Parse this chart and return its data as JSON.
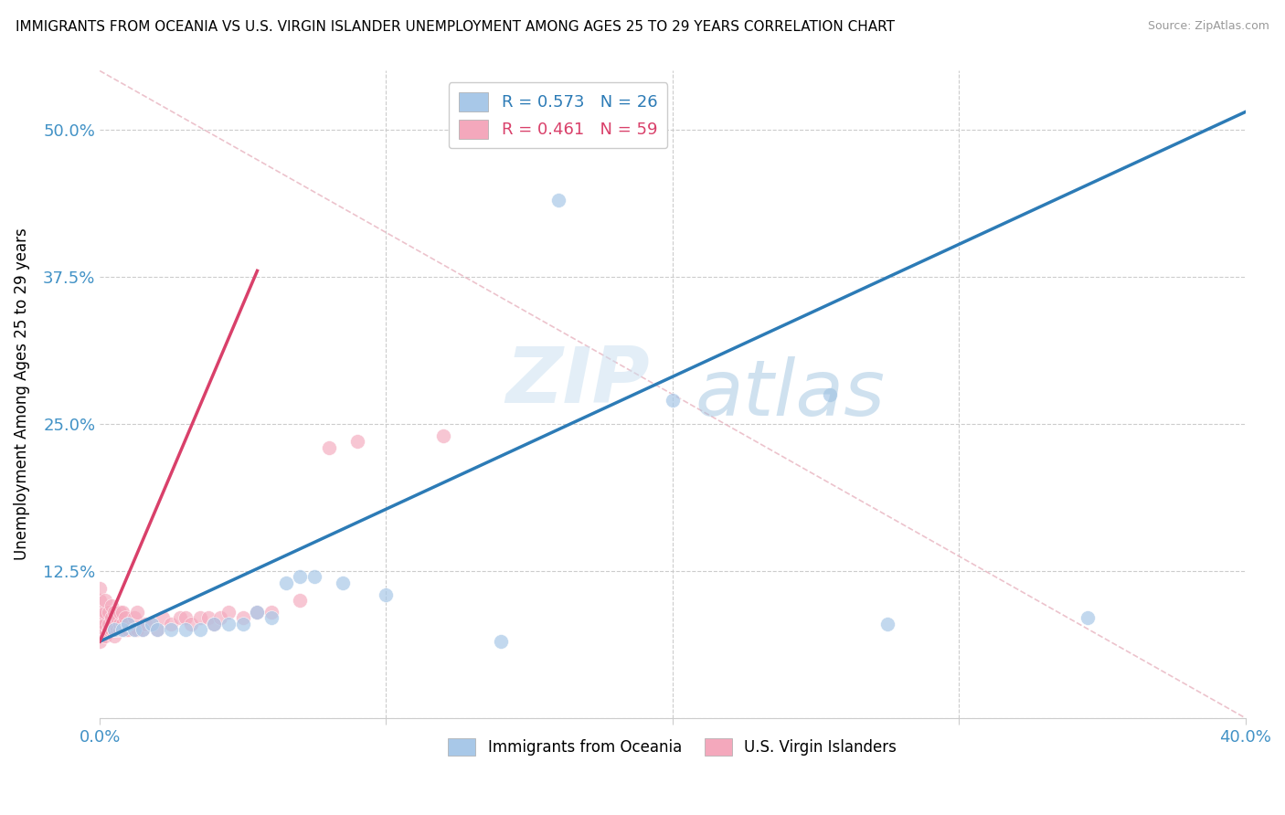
{
  "title": "IMMIGRANTS FROM OCEANIA VS U.S. VIRGIN ISLANDER UNEMPLOYMENT AMONG AGES 25 TO 29 YEARS CORRELATION CHART",
  "source": "Source: ZipAtlas.com",
  "ylabel": "Unemployment Among Ages 25 to 29 years",
  "xlim": [
    0,
    0.4
  ],
  "ylim": [
    0,
    0.55
  ],
  "xticks": [
    0.0,
    0.1,
    0.2,
    0.3,
    0.4
  ],
  "xticklabels": [
    "0.0%",
    "",
    "",
    "",
    "40.0%"
  ],
  "yticks": [
    0.0,
    0.125,
    0.25,
    0.375,
    0.5
  ],
  "yticklabels": [
    "",
    "12.5%",
    "25.0%",
    "37.5%",
    "50.0%"
  ],
  "legend_R1": "R = 0.573",
  "legend_N1": "N = 26",
  "legend_R2": "R = 0.461",
  "legend_N2": "N = 59",
  "blue_color": "#a8c8e8",
  "pink_color": "#f4a8bc",
  "blue_line_color": "#2c7bb6",
  "pink_line_color": "#d9406a",
  "axis_label_color": "#4292c6",
  "watermark": "ZIPatlas",
  "blue_scatter_x": [
    0.005,
    0.008,
    0.01,
    0.012,
    0.015,
    0.018,
    0.02,
    0.025,
    0.03,
    0.035,
    0.04,
    0.045,
    0.05,
    0.055,
    0.06,
    0.065,
    0.07,
    0.075,
    0.085,
    0.1,
    0.14,
    0.16,
    0.2,
    0.255,
    0.275,
    0.345
  ],
  "blue_scatter_y": [
    0.075,
    0.075,
    0.08,
    0.075,
    0.075,
    0.08,
    0.075,
    0.075,
    0.075,
    0.075,
    0.08,
    0.08,
    0.08,
    0.09,
    0.085,
    0.115,
    0.12,
    0.12,
    0.115,
    0.105,
    0.065,
    0.44,
    0.27,
    0.275,
    0.08,
    0.085
  ],
  "blue_trendline_x": [
    0.0,
    0.4
  ],
  "blue_trendline_y": [
    0.065,
    0.515
  ],
  "pink_scatter_x": [
    0.0,
    0.0,
    0.0,
    0.0,
    0.0,
    0.0,
    0.0,
    0.002,
    0.002,
    0.002,
    0.002,
    0.002,
    0.003,
    0.003,
    0.003,
    0.004,
    0.004,
    0.004,
    0.005,
    0.005,
    0.005,
    0.005,
    0.006,
    0.006,
    0.007,
    0.007,
    0.007,
    0.008,
    0.008,
    0.008,
    0.009,
    0.009,
    0.01,
    0.01,
    0.012,
    0.012,
    0.013,
    0.013,
    0.015,
    0.016,
    0.018,
    0.02,
    0.022,
    0.025,
    0.028,
    0.03,
    0.032,
    0.035,
    0.038,
    0.04,
    0.042,
    0.045,
    0.05,
    0.055,
    0.06,
    0.07,
    0.08,
    0.09,
    0.12
  ],
  "pink_scatter_y": [
    0.065,
    0.075,
    0.08,
    0.085,
    0.09,
    0.1,
    0.11,
    0.07,
    0.075,
    0.08,
    0.09,
    0.1,
    0.075,
    0.08,
    0.09,
    0.075,
    0.085,
    0.095,
    0.07,
    0.075,
    0.08,
    0.09,
    0.075,
    0.085,
    0.075,
    0.08,
    0.09,
    0.075,
    0.08,
    0.09,
    0.075,
    0.085,
    0.075,
    0.08,
    0.075,
    0.085,
    0.075,
    0.09,
    0.075,
    0.08,
    0.08,
    0.075,
    0.085,
    0.08,
    0.085,
    0.085,
    0.08,
    0.085,
    0.085,
    0.08,
    0.085,
    0.09,
    0.085,
    0.09,
    0.09,
    0.1,
    0.23,
    0.235,
    0.24
  ],
  "pink_trendline_x": [
    0.0,
    0.055
  ],
  "pink_trendline_y": [
    0.065,
    0.38
  ],
  "ref_line_x": [
    0.0,
    0.4
  ],
  "ref_line_y": [
    0.55,
    0.0
  ]
}
